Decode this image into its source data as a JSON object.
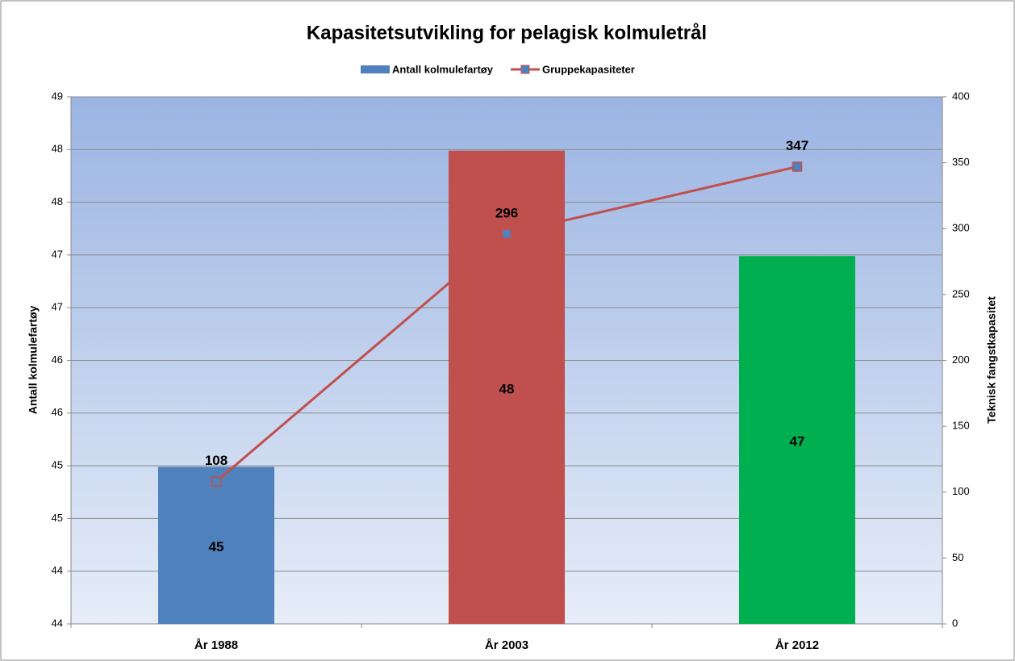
{
  "chart_data": {
    "type": "bar-line",
    "title": "Kapasitetsutvikling for pelagisk kolmuletrål",
    "categories": [
      "År 1988",
      "År 2003",
      "År 2012"
    ],
    "ylabel": "Antall kolmulefartøy",
    "y2label": "Teknisk fangstkapasitet",
    "series": [
      {
        "name": "Antall kolmulefartøy",
        "type": "bar",
        "color": "#4f81bd",
        "colors": [
          "#4f81bd",
          "#c0504d",
          "#00b050"
        ],
        "values": [
          45.49,
          48.49,
          47.49
        ],
        "value_labels": [
          "45",
          "48",
          "47"
        ]
      },
      {
        "name": "Gruppekapasiteter",
        "type": "line",
        "axis": "y2",
        "color": "#c0504d",
        "marker_color": "#4f81bd",
        "values": [
          108,
          296,
          347
        ]
      }
    ],
    "ylim": [
      44,
      49
    ],
    "yticks": [
      44,
      {
        "value": 44.5,
        "label": "44"
      },
      45,
      {
        "value": 45.5,
        "label": "45"
      },
      46,
      {
        "value": 46.5,
        "label": "46"
      },
      47,
      {
        "value": 47.5,
        "label": "47"
      },
      48,
      {
        "value": 48.5,
        "label": "48"
      },
      49
    ],
    "y2lim": [
      0,
      400
    ],
    "y2ticks": [
      0,
      50,
      100,
      150,
      200,
      250,
      300,
      350,
      400
    ],
    "grid": true,
    "legend": "top"
  }
}
